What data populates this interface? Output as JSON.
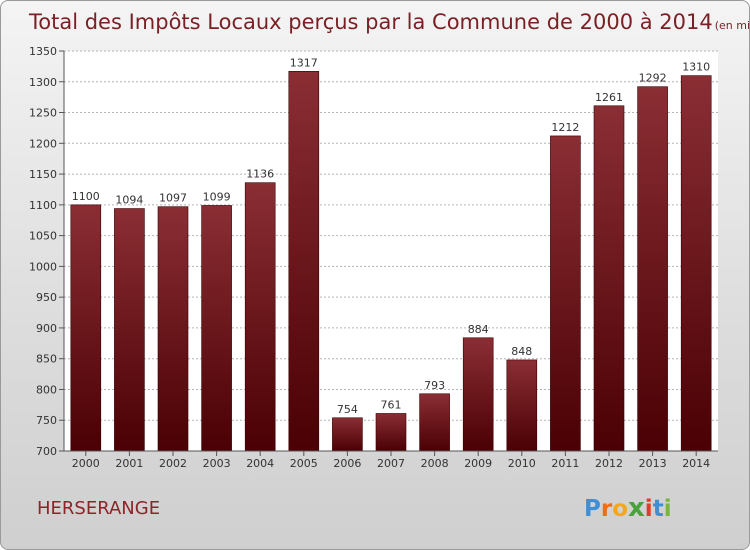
{
  "chart_data": {
    "type": "bar",
    "title": "Total des Impôts Locaux perçus par la Commune de 2000 à 2014",
    "unit_label": "(en milliers d'€)",
    "categories": [
      "2000",
      "2001",
      "2002",
      "2003",
      "2004",
      "2005",
      "2006",
      "2007",
      "2008",
      "2009",
      "2010",
      "2011",
      "2012",
      "2013",
      "2014"
    ],
    "values": [
      1100,
      1094,
      1097,
      1099,
      1136,
      1317,
      754,
      761,
      793,
      884,
      848,
      1212,
      1261,
      1292,
      1310
    ],
    "value_labels": [
      "1100",
      "1094",
      "1097",
      "1099",
      "1136",
      "1317",
      "754",
      "761",
      "793",
      "884",
      "848",
      "1212",
      "1261",
      "1292",
      "1310"
    ],
    "ylim": [
      700,
      1350
    ],
    "yticks": [
      700,
      750,
      800,
      850,
      900,
      950,
      1000,
      1050,
      1100,
      1150,
      1200,
      1250,
      1300,
      1350
    ],
    "xlabel": "",
    "ylabel": "",
    "grid": "horizontal",
    "legend": "none"
  },
  "commune": "HERSERANGE",
  "brand": {
    "letters": [
      "P",
      "r",
      "o",
      "x",
      "i",
      "t",
      "i"
    ]
  },
  "colors": {
    "bar_top": "#8a2e34",
    "bar_bottom": "#4a0004",
    "title": "#7a1f24",
    "brand_letters": [
      "#3f8fd6",
      "#e8701c",
      "#f2a81c",
      "#4aa23c",
      "#e23b2a",
      "#3f8fd6",
      "#7ab63a"
    ]
  }
}
